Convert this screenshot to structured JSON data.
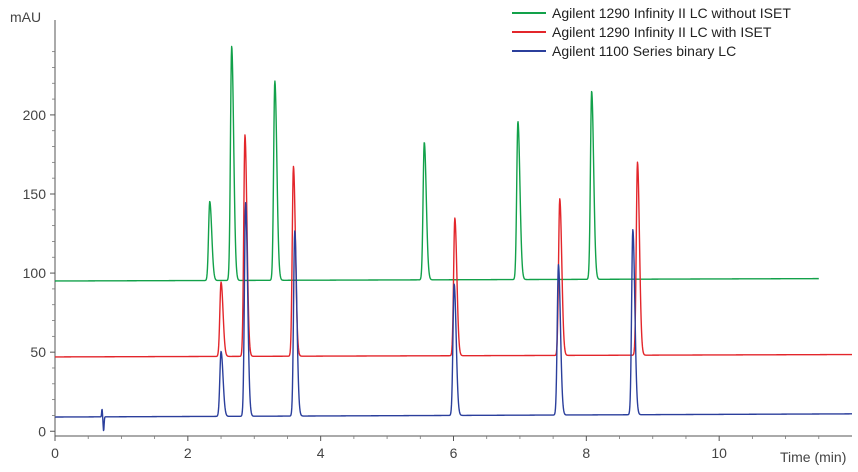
{
  "chart_data": {
    "type": "line",
    "title": "",
    "xlabel": "Time (min)",
    "ylabel": "mAU",
    "xlim": [
      0,
      12
    ],
    "ylim": [
      -3,
      260
    ],
    "x_ticks": [
      0,
      2,
      4,
      6,
      8,
      10
    ],
    "y_ticks": [
      0,
      50,
      100,
      150,
      200
    ],
    "grid": false,
    "legend": "top-right",
    "series": [
      {
        "name": "Agilent 1290 Infinity II LC without ISET",
        "color": "#12a14a",
        "baseline_start": 95,
        "baseline_end": 96.5,
        "x_end": 11.5,
        "peaks": [
          {
            "rt": 2.33,
            "height": 145
          },
          {
            "rt": 2.66,
            "height": 243
          },
          {
            "rt": 3.31,
            "height": 221
          },
          {
            "rt": 5.56,
            "height": 182
          },
          {
            "rt": 6.97,
            "height": 195
          },
          {
            "rt": 8.08,
            "height": 214
          }
        ]
      },
      {
        "name": "Agilent 1290 Infinity II LC with ISET",
        "color": "#e3262b",
        "baseline_start": 47,
        "baseline_end": 48.5,
        "x_end": 12,
        "peaks": [
          {
            "rt": 2.5,
            "height": 94
          },
          {
            "rt": 2.86,
            "height": 187
          },
          {
            "rt": 3.59,
            "height": 167
          },
          {
            "rt": 6.02,
            "height": 134
          },
          {
            "rt": 7.6,
            "height": 146
          },
          {
            "rt": 8.77,
            "height": 169
          }
        ]
      },
      {
        "name": "Agilent 1100 Series binary LC",
        "color": "#2b3f9c",
        "baseline_start": 9,
        "baseline_end": 11,
        "x_end": 12,
        "disturbance_rt": 0.72,
        "peaks": [
          {
            "rt": 2.5,
            "height": 50
          },
          {
            "rt": 2.87,
            "height": 144
          },
          {
            "rt": 3.61,
            "height": 126
          },
          {
            "rt": 6.01,
            "height": 92
          },
          {
            "rt": 7.58,
            "height": 104
          },
          {
            "rt": 8.7,
            "height": 126
          }
        ]
      }
    ]
  }
}
